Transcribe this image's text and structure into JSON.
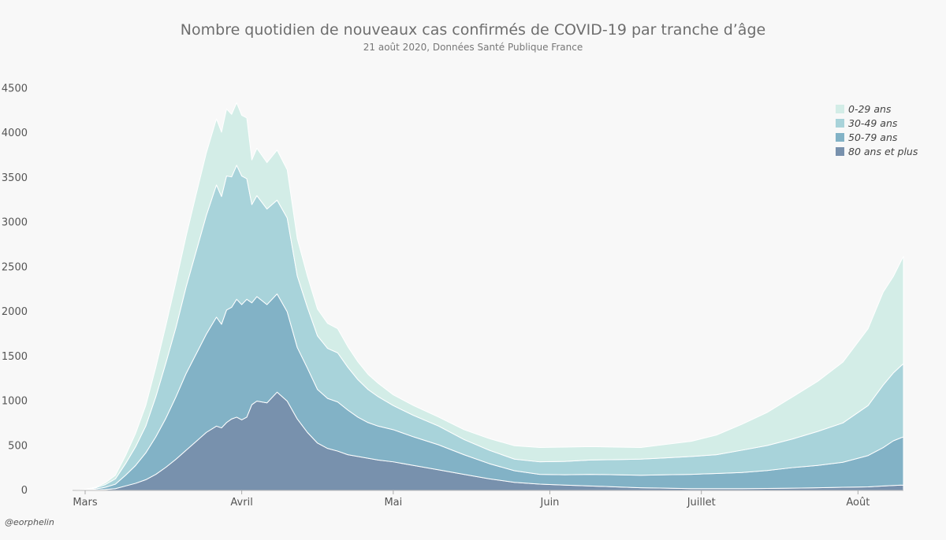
{
  "chart_data": {
    "type": "area",
    "stacked": true,
    "title": "Nombre quotidien de nouveaux cas confirmés de COVID-19 par tranche d’âge",
    "subtitle": "21 août 2020, Données Santé Publique France",
    "credit": "@eorphelin",
    "xlabel": "",
    "ylabel": "",
    "ylim": [
      0,
      4600
    ],
    "yticks": [
      0,
      500,
      1000,
      1500,
      2000,
      2500,
      3000,
      3500,
      4000,
      4500
    ],
    "xrange_days": [
      0,
      162
    ],
    "xticks": [
      {
        "label": "Mars",
        "day": 0
      },
      {
        "label": "Avril",
        "day": 31
      },
      {
        "label": "Mai",
        "day": 61
      },
      {
        "label": "Juin",
        "day": 92
      },
      {
        "label": "Juillet",
        "day": 122
      },
      {
        "label": "Août",
        "day": 153
      }
    ],
    "legend_position": "top-right",
    "x_days": [
      -2,
      0,
      2,
      4,
      6,
      8,
      10,
      12,
      14,
      16,
      18,
      20,
      22,
      24,
      26,
      27,
      28,
      29,
      30,
      31,
      32,
      33,
      34,
      36,
      38,
      40,
      42,
      44,
      46,
      48,
      50,
      52,
      54,
      56,
      58,
      61,
      65,
      70,
      75,
      80,
      85,
      90,
      95,
      100,
      105,
      110,
      115,
      120,
      125,
      130,
      135,
      140,
      145,
      150,
      155,
      158,
      160,
      162
    ],
    "series": [
      {
        "name": "80 ans et plus",
        "color": "#7891ad",
        "values": [
          0,
          2,
          5,
          10,
          20,
          50,
          80,
          120,
          180,
          260,
          350,
          450,
          550,
          650,
          720,
          700,
          760,
          800,
          820,
          790,
          820,
          960,
          1000,
          980,
          1100,
          1000,
          800,
          650,
          530,
          470,
          440,
          400,
          380,
          360,
          340,
          320,
          280,
          230,
          180,
          130,
          90,
          70,
          60,
          50,
          40,
          30,
          25,
          20,
          20,
          20,
          22,
          25,
          30,
          35,
          40,
          50,
          55,
          60
        ]
      },
      {
        "name": "50-79 ans",
        "color": "#82b2c6",
        "values": [
          0,
          3,
          10,
          25,
          50,
          120,
          200,
          300,
          420,
          550,
          700,
          860,
          980,
          1100,
          1220,
          1160,
          1260,
          1250,
          1320,
          1290,
          1320,
          1140,
          1170,
          1100,
          1100,
          1000,
          800,
          720,
          600,
          560,
          550,
          500,
          440,
          400,
          380,
          360,
          320,
          280,
          220,
          170,
          130,
          110,
          115,
          130,
          135,
          140,
          150,
          160,
          170,
          180,
          200,
          230,
          250,
          280,
          350,
          430,
          500,
          540
        ]
      },
      {
        "name": "30-49 ans",
        "color": "#a8d3da",
        "values": [
          0,
          4,
          12,
          30,
          60,
          130,
          210,
          300,
          450,
          620,
          780,
          970,
          1150,
          1330,
          1480,
          1430,
          1500,
          1460,
          1500,
          1440,
          1350,
          1100,
          1130,
          1070,
          1050,
          1050,
          800,
          680,
          600,
          560,
          550,
          480,
          420,
          370,
          330,
          270,
          240,
          210,
          170,
          150,
          130,
          140,
          150,
          160,
          170,
          180,
          190,
          200,
          210,
          250,
          280,
          320,
          380,
          440,
          560,
          700,
          760,
          820
        ]
      },
      {
        "name": "0-29 ans",
        "color": "#d3ede7",
        "values": [
          0,
          3,
          8,
          20,
          40,
          90,
          150,
          230,
          330,
          420,
          510,
          570,
          640,
          700,
          740,
          720,
          750,
          700,
          700,
          680,
          680,
          500,
          530,
          520,
          560,
          540,
          420,
          350,
          300,
          280,
          270,
          230,
          200,
          170,
          150,
          120,
          110,
          100,
          110,
          130,
          150,
          160,
          160,
          150,
          140,
          130,
          150,
          170,
          220,
          290,
          370,
          470,
          560,
          680,
          860,
          1040,
          1080,
          1200
        ]
      }
    ]
  }
}
